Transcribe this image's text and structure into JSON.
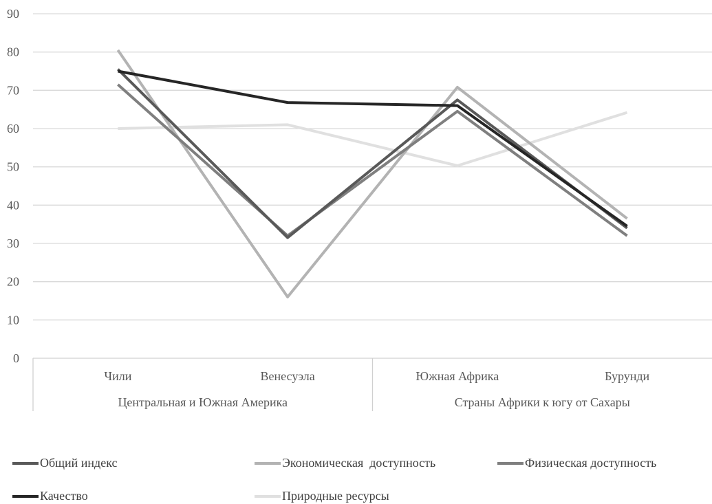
{
  "chart_data": {
    "type": "line",
    "ylim": [
      0,
      90
    ],
    "yticks": [
      0,
      10,
      20,
      30,
      40,
      50,
      60,
      70,
      80,
      90
    ],
    "grid": true,
    "legend_position": "bottom",
    "categories": [
      "Чили",
      "Венесуэла",
      "Южная Африка",
      "Бурунди"
    ],
    "groups": [
      {
        "label": "Центральная и Южная Америка",
        "categories": [
          "Чили",
          "Венесуэла"
        ]
      },
      {
        "label": "Страны Африки к югу от Сахары",
        "categories": [
          "Южная Африка",
          "Бурунди"
        ]
      }
    ],
    "series": [
      {
        "name": "Общий индекс",
        "color": "#595959",
        "values": [
          75.5,
          31.5,
          67.5,
          34.0
        ]
      },
      {
        "name": "Экономическая  доступность",
        "color": "#b3b3b3",
        "values": [
          80.5,
          16.0,
          70.8,
          36.5
        ]
      },
      {
        "name": "Физическая доступность",
        "color": "#7f7f7f",
        "values": [
          71.5,
          32.0,
          64.5,
          32.0
        ]
      },
      {
        "name": "Качество",
        "color": "#262626",
        "values": [
          75.0,
          66.8,
          66.0,
          34.5
        ]
      },
      {
        "name": "Природные ресурсы",
        "color": "#e0e0e0",
        "values": [
          60.0,
          61.0,
          50.3,
          64.2
        ]
      }
    ]
  }
}
